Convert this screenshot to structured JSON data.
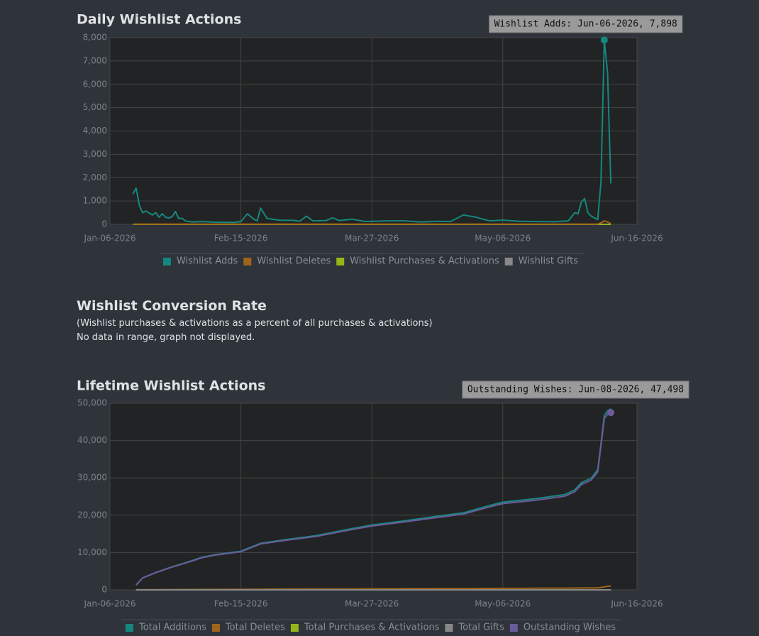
{
  "chart_data": [
    {
      "type": "line",
      "title": "Daily Wishlist Actions",
      "annotation": "Wishlist Adds: Jun-06-2026, 7,898",
      "x": [
        "Jan-13-2026",
        "Jan-14-2026",
        "Jan-15-2026",
        "Jan-16-2026",
        "Jan-17-2026",
        "Jan-18-2026",
        "Jan-19-2026",
        "Jan-20-2026",
        "Jan-21-2026",
        "Jan-22-2026",
        "Jan-23-2026",
        "Jan-24-2026",
        "Jan-25-2026",
        "Jan-26-2026",
        "Jan-27-2026",
        "Jan-28-2026",
        "Jan-29-2026",
        "Jan-31-2026",
        "Feb-03-2026",
        "Feb-07-2026",
        "Feb-13-2026",
        "Feb-15-2026",
        "Feb-17-2026",
        "Feb-19-2026",
        "Feb-20-2026",
        "Feb-21-2026",
        "Feb-23-2026",
        "Feb-27-2026",
        "Mar-03-2026",
        "Mar-05-2026",
        "Mar-07-2026",
        "Mar-09-2026",
        "Mar-13-2026",
        "Mar-15-2026",
        "Mar-17-2026",
        "Mar-21-2026",
        "Mar-25-2026",
        "Apr-01-2026",
        "Apr-06-2026",
        "Apr-11-2026",
        "Apr-16-2026",
        "Apr-20-2026",
        "Apr-24-2026",
        "Apr-28-2026",
        "Apr-30-2026",
        "May-02-2026",
        "May-06-2026",
        "May-11-2026",
        "May-16-2026",
        "May-22-2026",
        "May-26-2026",
        "May-28-2026",
        "May-29-2026",
        "May-30-2026",
        "May-31-2026",
        "Jun-01-2026",
        "Jun-02-2026",
        "Jun-04-2026",
        "Jun-05-2026",
        "Jun-06-2026",
        "Jun-07-2026",
        "Jun-08-2026"
      ],
      "series": [
        {
          "name": "Wishlist Adds",
          "color": "#15877f",
          "values": [
            1300,
            1550,
            800,
            500,
            570,
            480,
            400,
            500,
            300,
            450,
            300,
            270,
            330,
            550,
            250,
            260,
            150,
            100,
            120,
            90,
            80,
            120,
            450,
            220,
            150,
            700,
            250,
            170,
            170,
            130,
            350,
            150,
            160,
            280,
            160,
            220,
            120,
            150,
            150,
            100,
            130,
            120,
            400,
            300,
            220,
            150,
            180,
            130,
            120,
            110,
            150,
            500,
            450,
            950,
            1100,
            500,
            350,
            200,
            1800,
            7898,
            6500,
            1750
          ]
        },
        {
          "name": "Wishlist Deletes",
          "color": "#a0651b",
          "values": [
            10,
            10,
            10,
            10,
            10,
            10,
            10,
            10,
            10,
            10,
            10,
            10,
            10,
            10,
            10,
            10,
            10,
            10,
            10,
            10,
            10,
            10,
            10,
            10,
            10,
            10,
            10,
            10,
            10,
            10,
            10,
            10,
            10,
            10,
            10,
            10,
            10,
            10,
            10,
            10,
            10,
            10,
            10,
            10,
            10,
            10,
            10,
            10,
            10,
            10,
            10,
            10,
            10,
            10,
            10,
            10,
            10,
            10,
            60,
            150,
            100,
            30
          ]
        },
        {
          "name": "Wishlist Purchases & Activations",
          "color": "#95b51b",
          "values": [
            0,
            0,
            0,
            0,
            0,
            0,
            0,
            0,
            0,
            0,
            0,
            0,
            0,
            0,
            0,
            0,
            0,
            0,
            0,
            0,
            0,
            0,
            0,
            0,
            0,
            0,
            0,
            0,
            0,
            0,
            0,
            0,
            0,
            0,
            0,
            0,
            0,
            0,
            0,
            0,
            0,
            0,
            0,
            0,
            0,
            0,
            0,
            0,
            0,
            0,
            0,
            0,
            0,
            0,
            0,
            0,
            0,
            0,
            0,
            0,
            0,
            0
          ]
        },
        {
          "name": "Wishlist Gifts",
          "color": "#888888",
          "values": [
            0,
            0,
            0,
            0,
            0,
            0,
            0,
            0,
            0,
            0,
            0,
            0,
            0,
            0,
            0,
            0,
            0,
            0,
            0,
            0,
            0,
            0,
            0,
            0,
            0,
            0,
            0,
            0,
            0,
            0,
            0,
            0,
            0,
            0,
            0,
            0,
            0,
            0,
            0,
            0,
            0,
            0,
            0,
            0,
            0,
            0,
            0,
            0,
            0,
            0,
            0,
            0,
            0,
            0,
            0,
            0,
            0,
            0,
            0,
            0,
            0,
            0
          ]
        }
      ],
      "xlim": [
        "Jan-06-2026",
        "Jun-16-2026"
      ],
      "xticks": [
        "Jan-06-2026",
        "Feb-15-2026",
        "Mar-27-2026",
        "May-06-2026",
        "Jun-16-2026"
      ],
      "ylim": [
        0,
        8000
      ],
      "yticks": [
        0,
        {
          "value": 1000,
          "label": "1,000"
        },
        {
          "value": 2000,
          "label": "2,000"
        },
        {
          "value": 3000,
          "label": "3,000"
        },
        {
          "value": 4000,
          "label": "4,000"
        },
        {
          "value": 5000,
          "label": "5,000"
        },
        {
          "value": 6000,
          "label": "6,000"
        },
        {
          "value": 7000,
          "label": "7,000"
        },
        {
          "value": 8000,
          "label": "8,000"
        }
      ],
      "grid": true
    },
    {
      "type": "line",
      "title": "Lifetime Wishlist Actions",
      "annotation": "Outstanding Wishes: Jun-08-2026, 47,498",
      "x": [
        "Jan-14-2026",
        "Jan-16-2026",
        "Jan-20-2026",
        "Jan-25-2026",
        "Jan-31-2026",
        "Feb-03-2026",
        "Feb-07-2026",
        "Feb-15-2026",
        "Feb-17-2026",
        "Feb-21-2026",
        "Mar-01-2026",
        "Mar-10-2026",
        "Mar-20-2026",
        "Mar-27-2026",
        "Apr-06-2026",
        "Apr-16-2026",
        "Apr-24-2026",
        "May-01-2026",
        "May-06-2026",
        "May-16-2026",
        "May-25-2026",
        "May-28-2026",
        "May-30-2026",
        "Jun-02-2026",
        "Jun-04-2026",
        "Jun-05-2026",
        "Jun-06-2026",
        "Jun-07-2026",
        "Jun-08-2026"
      ],
      "series": [
        {
          "name": "Total Additions",
          "color": "#15877f",
          "values": [
            1310,
            3230,
            4650,
            6180,
            7800,
            8710,
            9420,
            10350,
            11060,
            12480,
            13500,
            14520,
            16250,
            17370,
            18500,
            19730,
            20650,
            22380,
            23500,
            24430,
            25560,
            26780,
            28700,
            29920,
            32160,
            39150,
            46700,
            47950,
            48498
          ]
        },
        {
          "name": "Total Deletes",
          "color": "#a0651b",
          "values": [
            10,
            30,
            50,
            80,
            100,
            110,
            120,
            150,
            160,
            180,
            200,
            220,
            250,
            270,
            300,
            330,
            350,
            380,
            400,
            430,
            460,
            480,
            500,
            520,
            560,
            650,
            800,
            950,
            1000
          ]
        },
        {
          "name": "Total Purchases & Activations",
          "color": "#95b51b",
          "values": [
            0,
            0,
            0,
            0,
            0,
            0,
            0,
            0,
            0,
            0,
            0,
            0,
            0,
            0,
            0,
            0,
            0,
            0,
            0,
            0,
            0,
            0,
            0,
            0,
            0,
            0,
            0,
            0,
            0
          ]
        },
        {
          "name": "Total Gifts",
          "color": "#888888",
          "values": [
            0,
            0,
            0,
            0,
            0,
            0,
            0,
            0,
            0,
            0,
            0,
            0,
            0,
            0,
            0,
            0,
            0,
            0,
            0,
            0,
            0,
            0,
            0,
            0,
            0,
            0,
            0,
            0,
            0
          ]
        },
        {
          "name": "Outstanding Wishes",
          "color": "#6b5b9a",
          "values": [
            1300,
            3200,
            4600,
            6100,
            7700,
            8600,
            9300,
            10200,
            10900,
            12300,
            13300,
            14300,
            16000,
            17100,
            18200,
            19400,
            20300,
            22000,
            23100,
            24000,
            25100,
            26300,
            28200,
            29400,
            31600,
            38500,
            45900,
            47000,
            47498
          ]
        }
      ],
      "xlim": [
        "Jan-06-2026",
        "Jun-16-2026"
      ],
      "xticks": [
        "Jan-06-2026",
        "Feb-15-2026",
        "Mar-27-2026",
        "May-06-2026",
        "Jun-16-2026"
      ],
      "ylim": [
        0,
        50000
      ],
      "yticks": [
        0,
        {
          "value": 10000,
          "label": "10,000"
        },
        {
          "value": 20000,
          "label": "20,000"
        },
        {
          "value": 30000,
          "label": "30,000"
        },
        {
          "value": 40000,
          "label": "40,000"
        },
        {
          "value": 50000,
          "label": "50,000"
        }
      ],
      "grid": true
    }
  ],
  "conversion": {
    "title": "Wishlist Conversion Rate",
    "subtitle": "(Wishlist purchases & activations as a percent of all purchases & activations)",
    "note": "No data in range, graph not displayed."
  }
}
